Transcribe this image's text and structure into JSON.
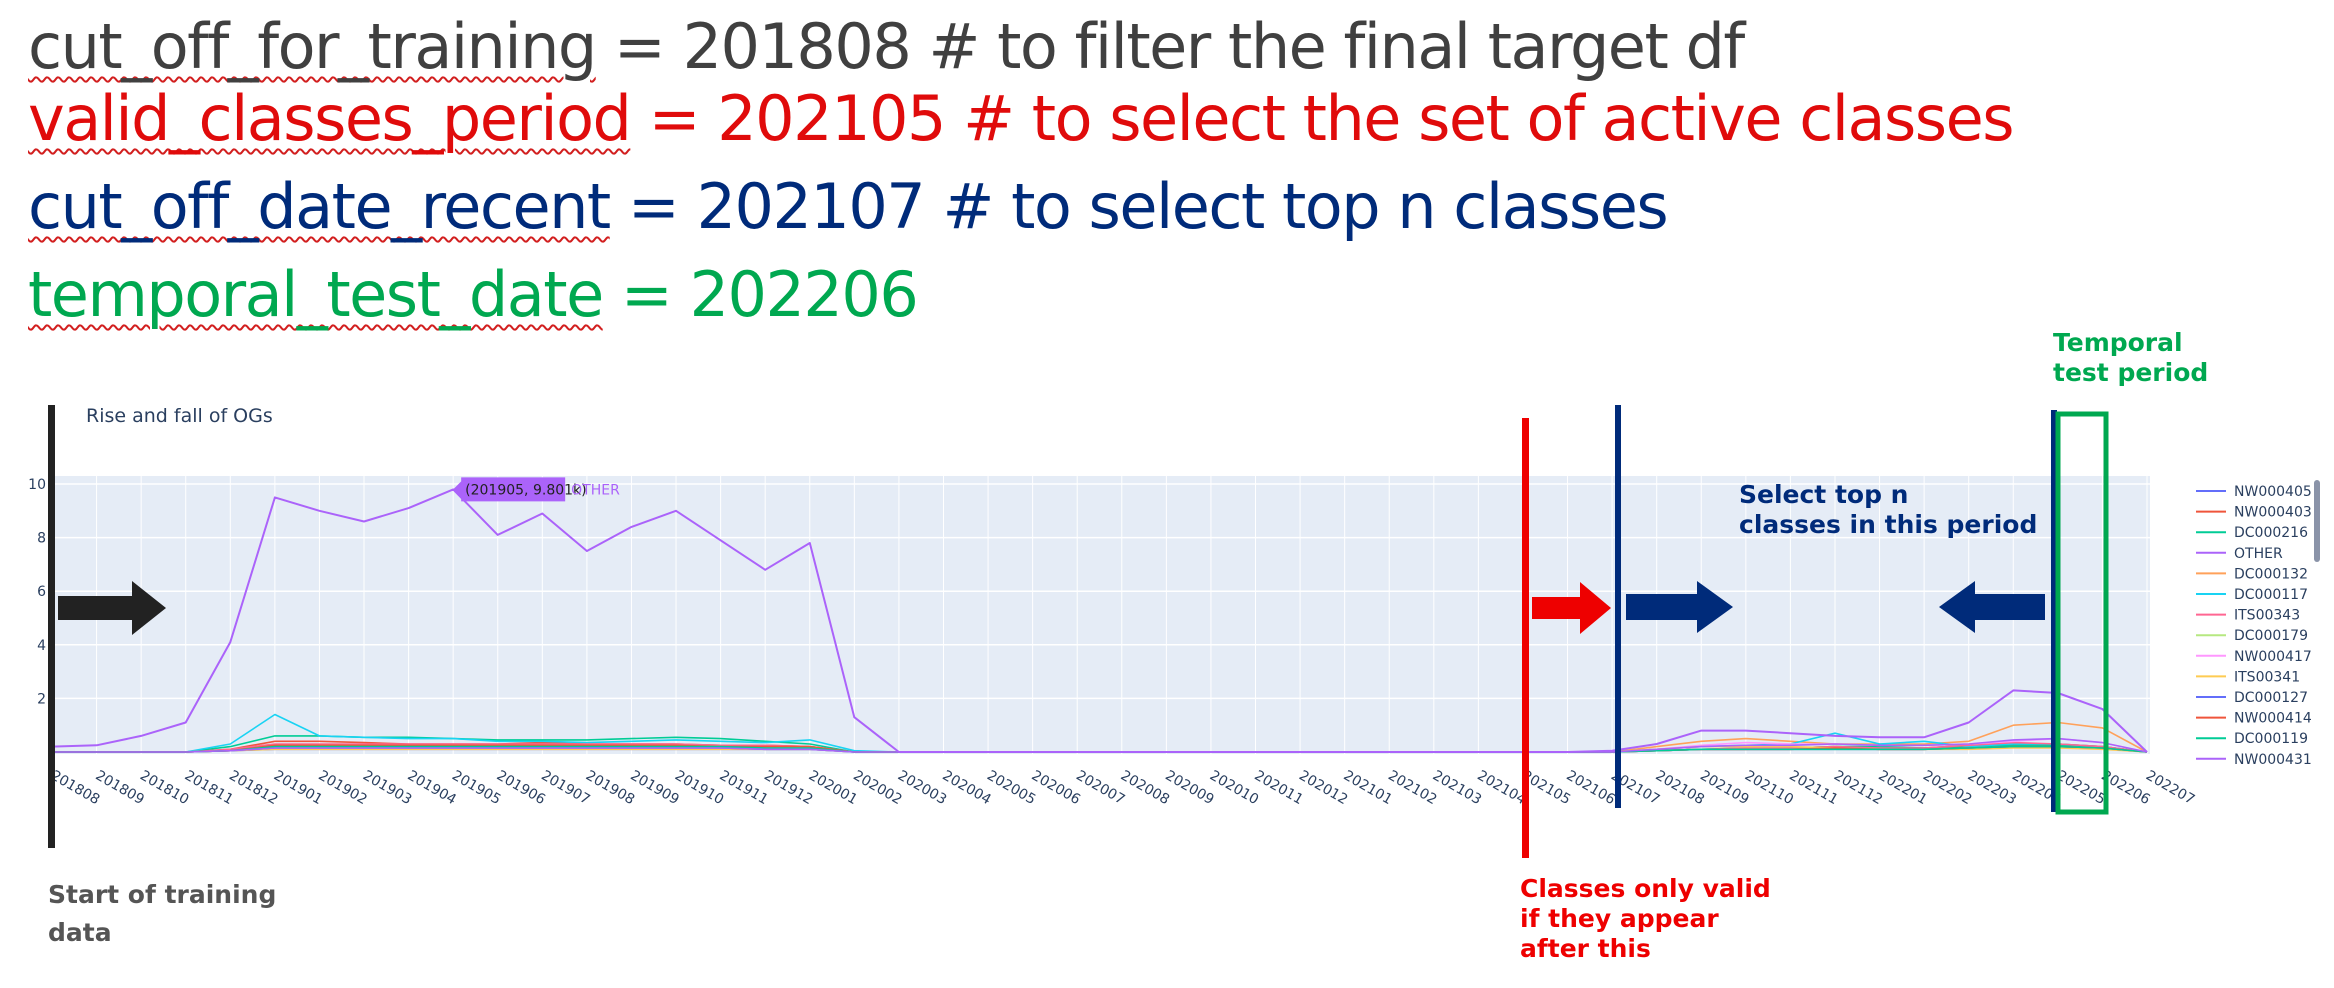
{
  "code": {
    "line1": {
      "var": "cut_off_for_training",
      "rest": " = 201808 # to filter the final target df"
    },
    "line2": {
      "var": "valid_classes_period",
      "rest": " = 202105 # to select the set of active classes"
    },
    "line3": {
      "var": "cut_off_date_recent",
      "rest": " = 202107 # to select top n classes"
    },
    "line4": {
      "var": "temporal_test_date",
      "rest": " = 202206"
    }
  },
  "annotations": {
    "start_training": "Start of training data",
    "classes_valid_1": "Classes only valid",
    "classes_valid_2": "if they appear",
    "classes_valid_3": "after this",
    "select_top_1": "Select top n",
    "select_top_2": "classes in this period",
    "temporal_1": "Temporal",
    "temporal_2": "test period"
  },
  "colors": {
    "training_marker": "#222222",
    "valid_marker": "#ee0000",
    "recent_marker": "#002b7a",
    "test_marker": "#00a850",
    "plot_bg": "#e5ecf6"
  },
  "chart_data": {
    "type": "line",
    "title": "Rise and fall of OGs",
    "categories": [
      "201808",
      "201809",
      "201810",
      "201811",
      "201812",
      "201901",
      "201902",
      "201903",
      "201904",
      "201905",
      "201906",
      "201907",
      "201908",
      "201909",
      "201910",
      "201911",
      "201912",
      "202001",
      "202002",
      "202003",
      "202004",
      "202005",
      "202006",
      "202007",
      "202008",
      "202009",
      "202010",
      "202011",
      "202012",
      "202101",
      "202102",
      "202103",
      "202104",
      "202105",
      "202106",
      "202107",
      "202108",
      "202109",
      "202110",
      "202111",
      "202112",
      "202201",
      "202202",
      "202203",
      "202204",
      "202205",
      "202206",
      "202207"
    ],
    "y_ticks": [
      2,
      4,
      6,
      8,
      10
    ],
    "ylim": [
      -0.3,
      10.3
    ],
    "grid": true,
    "legend_position": "right",
    "hover_label": {
      "text": "(201905, 9.801k)",
      "series": "OTHER",
      "x": "201905",
      "y": 9.8
    },
    "series": [
      {
        "name": "NW000405",
        "color": "#636efa",
        "values": [
          0,
          0,
          0,
          0,
          0.05,
          0.1,
          0.1,
          0.1,
          0.1,
          0.1,
          0.1,
          0.1,
          0.1,
          0.1,
          0.1,
          0.1,
          0.1,
          0.1,
          0,
          0,
          0,
          0,
          0,
          0,
          0,
          0,
          0,
          0,
          0,
          0,
          0,
          0,
          0,
          0,
          0,
          0,
          0.05,
          0.1,
          0.1,
          0.1,
          0.15,
          0.1,
          0.1,
          0.2,
          0.3,
          0.25,
          0.15,
          0
        ]
      },
      {
        "name": "NW000403",
        "color": "#ef553b",
        "values": [
          0,
          0,
          0,
          0,
          0.1,
          0.4,
          0.4,
          0.35,
          0.3,
          0.3,
          0.3,
          0.35,
          0.3,
          0.3,
          0.3,
          0.25,
          0.25,
          0.2,
          0,
          0,
          0,
          0,
          0,
          0,
          0,
          0,
          0,
          0,
          0,
          0,
          0,
          0,
          0,
          0,
          0,
          0,
          0.05,
          0.1,
          0.1,
          0.15,
          0.2,
          0.15,
          0.15,
          0.25,
          0.3,
          0.3,
          0.2,
          0
        ]
      },
      {
        "name": "DC000216",
        "color": "#00cc96",
        "values": [
          0,
          0,
          0,
          0,
          0.2,
          0.6,
          0.6,
          0.55,
          0.55,
          0.5,
          0.45,
          0.45,
          0.45,
          0.5,
          0.55,
          0.5,
          0.4,
          0.3,
          0,
          0,
          0,
          0,
          0,
          0,
          0,
          0,
          0,
          0,
          0,
          0,
          0,
          0,
          0,
          0,
          0,
          0,
          0.05,
          0.1,
          0.15,
          0.15,
          0.2,
          0.2,
          0.15,
          0.2,
          0.25,
          0.25,
          0.2,
          0
        ]
      },
      {
        "name": "OTHER",
        "color": "#ab63fa",
        "values": [
          0.2,
          0.25,
          0.6,
          1.1,
          4.1,
          9.5,
          9.0,
          8.6,
          9.1,
          9.8,
          8.1,
          8.9,
          7.5,
          8.4,
          9.0,
          7.9,
          6.8,
          7.8,
          1.3,
          0,
          0,
          0,
          0,
          0,
          0,
          0,
          0,
          0,
          0,
          0,
          0,
          0,
          0,
          0,
          0,
          0.05,
          0.3,
          0.8,
          0.8,
          0.7,
          0.6,
          0.55,
          0.55,
          1.1,
          2.3,
          2.2,
          1.6,
          0
        ]
      },
      {
        "name": "DC000132",
        "color": "#ffa15a",
        "values": [
          0,
          0,
          0,
          0,
          0.05,
          0.2,
          0.2,
          0.2,
          0.2,
          0.2,
          0.2,
          0.2,
          0.2,
          0.2,
          0.2,
          0.2,
          0.15,
          0.15,
          0,
          0,
          0,
          0,
          0,
          0,
          0,
          0,
          0,
          0,
          0,
          0,
          0,
          0,
          0,
          0,
          0,
          0,
          0.2,
          0.4,
          0.5,
          0.4,
          0.3,
          0.3,
          0.3,
          0.4,
          1.0,
          1.1,
          0.9,
          0
        ]
      },
      {
        "name": "DC000117",
        "color": "#19d3f3",
        "values": [
          0,
          0,
          0,
          0,
          0.3,
          1.4,
          0.6,
          0.55,
          0.5,
          0.5,
          0.4,
          0.4,
          0.35,
          0.4,
          0.45,
          0.4,
          0.35,
          0.45,
          0.05,
          0,
          0,
          0,
          0,
          0,
          0,
          0,
          0,
          0,
          0,
          0,
          0,
          0,
          0,
          0,
          0,
          0,
          0.1,
          0.2,
          0.25,
          0.3,
          0.7,
          0.3,
          0.4,
          0.2,
          0.3,
          0.3,
          0.2,
          0
        ]
      },
      {
        "name": "ITS00343",
        "color": "#ff6692",
        "values": [
          0,
          0,
          0,
          0,
          0.1,
          0.3,
          0.3,
          0.3,
          0.3,
          0.3,
          0.3,
          0.3,
          0.3,
          0.3,
          0.3,
          0.25,
          0.25,
          0.2,
          0,
          0,
          0,
          0,
          0,
          0,
          0,
          0,
          0,
          0,
          0,
          0,
          0,
          0,
          0,
          0,
          0,
          0,
          0.05,
          0.1,
          0.15,
          0.15,
          0.2,
          0.15,
          0.15,
          0.25,
          0.35,
          0.3,
          0.2,
          0
        ]
      },
      {
        "name": "DC000179",
        "color": "#b6e880",
        "values": [
          0,
          0,
          0,
          0,
          0.05,
          0.15,
          0.15,
          0.15,
          0.15,
          0.15,
          0.15,
          0.15,
          0.15,
          0.15,
          0.15,
          0.15,
          0.1,
          0.1,
          0,
          0,
          0,
          0,
          0,
          0,
          0,
          0,
          0,
          0,
          0,
          0,
          0,
          0,
          0,
          0,
          0,
          0,
          0.05,
          0.1,
          0.1,
          0.1,
          0.1,
          0.1,
          0.1,
          0.15,
          0.2,
          0.2,
          0.15,
          0
        ]
      },
      {
        "name": "NW000417",
        "color": "#ff97ff",
        "values": [
          0,
          0,
          0,
          0,
          0.05,
          0.2,
          0.25,
          0.2,
          0.2,
          0.2,
          0.2,
          0.2,
          0.2,
          0.2,
          0.2,
          0.2,
          0.15,
          0.15,
          0,
          0,
          0,
          0,
          0,
          0,
          0,
          0,
          0,
          0,
          0,
          0,
          0,
          0,
          0,
          0,
          0,
          0,
          0.1,
          0.25,
          0.35,
          0.3,
          0.3,
          0.25,
          0.25,
          0.3,
          0.4,
          0.5,
          0.35,
          0
        ]
      },
      {
        "name": "ITS00341",
        "color": "#fecb52",
        "values": [
          0,
          0,
          0,
          0,
          0.05,
          0.1,
          0.1,
          0.1,
          0.1,
          0.1,
          0.1,
          0.1,
          0.1,
          0.1,
          0.1,
          0.1,
          0.1,
          0.1,
          0,
          0,
          0,
          0,
          0,
          0,
          0,
          0,
          0,
          0,
          0,
          0,
          0,
          0,
          0,
          0,
          0,
          0,
          0.1,
          0.2,
          0.2,
          0.2,
          0.15,
          0.1,
          0.1,
          0.1,
          0.15,
          0.15,
          0.1,
          0
        ]
      },
      {
        "name": "DC000127",
        "color": "#636efa",
        "values": [
          0,
          0,
          0,
          0,
          0.05,
          0.15,
          0.15,
          0.15,
          0.15,
          0.15,
          0.15,
          0.15,
          0.15,
          0.15,
          0.15,
          0.15,
          0.1,
          0.1,
          0,
          0,
          0,
          0,
          0,
          0,
          0,
          0,
          0,
          0,
          0,
          0,
          0,
          0,
          0,
          0,
          0,
          0,
          0.05,
          0.1,
          0.1,
          0.1,
          0.1,
          0.1,
          0.1,
          0.15,
          0.2,
          0.2,
          0.15,
          0
        ]
      },
      {
        "name": "NW000414",
        "color": "#ef553b",
        "values": [
          0,
          0,
          0,
          0,
          0.05,
          0.25,
          0.25,
          0.25,
          0.25,
          0.25,
          0.25,
          0.25,
          0.25,
          0.25,
          0.25,
          0.2,
          0.2,
          0.2,
          0,
          0,
          0,
          0,
          0,
          0,
          0,
          0,
          0,
          0,
          0,
          0,
          0,
          0,
          0,
          0,
          0,
          0,
          0.05,
          0.1,
          0.1,
          0.1,
          0.15,
          0.1,
          0.1,
          0.15,
          0.2,
          0.2,
          0.15,
          0
        ]
      },
      {
        "name": "DC000119",
        "color": "#00cc96",
        "values": [
          0,
          0,
          0,
          0,
          0.05,
          0.2,
          0.2,
          0.2,
          0.2,
          0.2,
          0.2,
          0.2,
          0.2,
          0.2,
          0.2,
          0.2,
          0.15,
          0.15,
          0,
          0,
          0,
          0,
          0,
          0,
          0,
          0,
          0,
          0,
          0,
          0,
          0,
          0,
          0,
          0,
          0,
          0,
          0.05,
          0.1,
          0.1,
          0.1,
          0.1,
          0.1,
          0.1,
          0.15,
          0.2,
          0.2,
          0.15,
          0
        ]
      },
      {
        "name": "NW000431",
        "color": "#ab63fa",
        "values": [
          0,
          0,
          0,
          0,
          0.05,
          0.15,
          0.15,
          0.15,
          0.15,
          0.15,
          0.15,
          0.15,
          0.15,
          0.15,
          0.15,
          0.15,
          0.1,
          0.1,
          0,
          0,
          0,
          0,
          0,
          0,
          0,
          0,
          0,
          0,
          0,
          0,
          0,
          0,
          0,
          0,
          0,
          0,
          0.1,
          0.2,
          0.25,
          0.25,
          0.3,
          0.25,
          0.25,
          0.3,
          0.45,
          0.5,
          0.35,
          0
        ]
      }
    ]
  }
}
